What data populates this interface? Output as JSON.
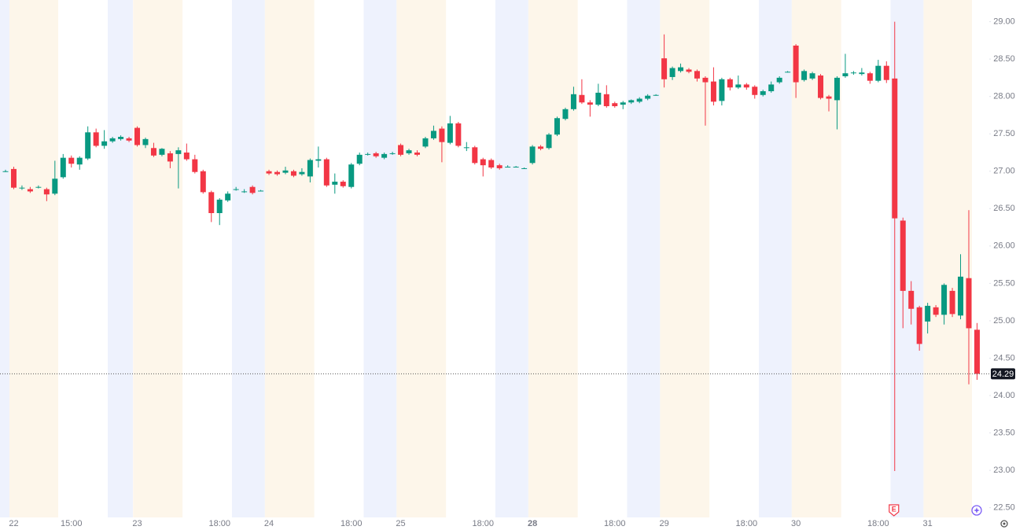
{
  "chart_data": {
    "type": "candlestick",
    "categories": [
      null,
      "22",
      null,
      null,
      null,
      null,
      null,
      null,
      "15:00",
      null,
      null,
      null,
      null,
      null,
      null,
      null,
      "23",
      null,
      null,
      null,
      null,
      null,
      null,
      null,
      null,
      null,
      "18:00",
      null,
      null,
      null,
      null,
      null,
      "24",
      null,
      null,
      null,
      null,
      null,
      null,
      null,
      null,
      null,
      "18:00",
      null,
      null,
      null,
      null,
      null,
      "25",
      null,
      null,
      null,
      null,
      null,
      null,
      null,
      null,
      null,
      "18:00",
      null,
      null,
      null,
      null,
      null,
      "28",
      null,
      null,
      null,
      null,
      null,
      null,
      null,
      null,
      null,
      "18:00",
      null,
      null,
      null,
      null,
      null,
      "29",
      null,
      null,
      null,
      null,
      null,
      null,
      null,
      null,
      null,
      "18:00",
      null,
      null,
      null,
      null,
      null,
      "30",
      null,
      null,
      null,
      null,
      null,
      null,
      null,
      null,
      null,
      "18:00",
      null,
      null,
      null,
      null,
      null,
      "31",
      null,
      null,
      null,
      null,
      null,
      null
    ],
    "ohlc": [
      [
        27.0,
        27.02,
        26.99,
        27.0
      ],
      [
        27.03,
        27.06,
        26.76,
        26.78
      ],
      [
        26.78,
        26.81,
        26.75,
        26.78
      ],
      [
        26.76,
        26.79,
        26.71,
        26.73
      ],
      [
        26.79,
        26.81,
        26.77,
        26.79
      ],
      [
        26.76,
        26.78,
        26.6,
        26.69
      ],
      [
        26.7,
        27.14,
        26.68,
        26.9
      ],
      [
        26.92,
        27.23,
        26.9,
        27.18
      ],
      [
        27.18,
        27.21,
        27.05,
        27.1
      ],
      [
        27.09,
        27.2,
        27.02,
        27.18
      ],
      [
        27.17,
        27.6,
        27.15,
        27.52
      ],
      [
        27.52,
        27.57,
        27.32,
        27.34
      ],
      [
        27.34,
        27.55,
        27.3,
        27.4
      ],
      [
        27.4,
        27.46,
        27.38,
        27.44
      ],
      [
        27.43,
        27.48,
        27.41,
        27.46
      ],
      [
        27.44,
        27.46,
        27.39,
        27.41
      ],
      [
        27.58,
        27.6,
        27.33,
        27.35
      ],
      [
        27.35,
        27.45,
        27.31,
        27.43
      ],
      [
        27.31,
        27.38,
        27.19,
        27.21
      ],
      [
        27.22,
        27.31,
        27.2,
        27.3
      ],
      [
        27.24,
        27.27,
        27.04,
        27.13
      ],
      [
        27.23,
        27.32,
        26.77,
        27.28
      ],
      [
        27.25,
        27.37,
        27.14,
        27.16
      ],
      [
        27.16,
        27.22,
        26.97,
        26.99
      ],
      [
        27.0,
        27.02,
        26.7,
        26.72
      ],
      [
        26.72,
        26.74,
        26.32,
        26.44
      ],
      [
        26.44,
        26.64,
        26.28,
        26.62
      ],
      [
        26.61,
        26.73,
        26.59,
        26.7
      ],
      [
        26.76,
        26.79,
        26.74,
        26.76
      ],
      [
        26.73,
        26.76,
        26.71,
        26.73
      ],
      [
        26.79,
        26.81,
        26.69,
        26.71
      ],
      [
        26.74,
        26.75,
        26.73,
        26.74
      ],
      [
        27.0,
        27.02,
        26.95,
        26.97
      ],
      [
        26.99,
        27.01,
        26.94,
        26.96
      ],
      [
        26.98,
        27.06,
        26.96,
        27.01
      ],
      [
        27.0,
        27.02,
        26.92,
        26.94
      ],
      [
        26.96,
        27.04,
        26.94,
        26.99
      ],
      [
        26.93,
        27.17,
        26.85,
        27.15
      ],
      [
        27.14,
        27.33,
        27.05,
        27.16
      ],
      [
        27.16,
        27.18,
        26.79,
        26.81
      ],
      [
        26.82,
        26.97,
        26.7,
        26.86
      ],
      [
        26.86,
        26.88,
        26.78,
        26.8
      ],
      [
        26.79,
        27.11,
        26.77,
        27.09
      ],
      [
        27.1,
        27.25,
        27.08,
        27.22
      ],
      [
        27.23,
        27.25,
        27.21,
        27.23
      ],
      [
        27.24,
        27.26,
        27.18,
        27.2
      ],
      [
        27.18,
        27.25,
        27.16,
        27.23
      ],
      [
        27.24,
        27.26,
        27.22,
        27.24
      ],
      [
        27.35,
        27.37,
        27.2,
        27.22
      ],
      [
        27.24,
        27.3,
        27.22,
        27.28
      ],
      [
        27.25,
        27.28,
        27.2,
        27.22
      ],
      [
        27.33,
        27.46,
        27.31,
        27.44
      ],
      [
        27.44,
        27.61,
        27.42,
        27.54
      ],
      [
        27.57,
        27.6,
        27.12,
        27.39
      ],
      [
        27.38,
        27.74,
        27.36,
        27.64
      ],
      [
        27.64,
        27.66,
        27.32,
        27.34
      ],
      [
        27.32,
        27.39,
        27.27,
        27.32
      ],
      [
        27.32,
        27.34,
        27.09,
        27.11
      ],
      [
        27.16,
        27.18,
        26.93,
        27.08
      ],
      [
        27.15,
        27.17,
        27.03,
        27.05
      ],
      [
        27.08,
        27.1,
        27.02,
        27.04
      ],
      [
        27.06,
        27.08,
        27.05,
        27.06
      ],
      [
        27.06,
        27.07,
        27.05,
        27.06
      ],
      [
        27.04,
        27.05,
        27.03,
        27.04
      ],
      [
        27.11,
        27.35,
        27.09,
        27.33
      ],
      [
        27.33,
        27.35,
        27.28,
        27.3
      ],
      [
        27.31,
        27.51,
        27.29,
        27.49
      ],
      [
        27.49,
        27.73,
        27.47,
        27.71
      ],
      [
        27.7,
        27.85,
        27.68,
        27.83
      ],
      [
        27.83,
        28.13,
        27.81,
        28.03
      ],
      [
        28.02,
        28.23,
        27.9,
        27.92
      ],
      [
        27.92,
        27.95,
        27.73,
        27.89
      ],
      [
        27.89,
        28.17,
        27.87,
        28.05
      ],
      [
        28.03,
        28.15,
        27.85,
        27.87
      ],
      [
        27.91,
        27.93,
        27.85,
        27.87
      ],
      [
        27.89,
        27.94,
        27.83,
        27.92
      ],
      [
        27.92,
        27.96,
        27.9,
        27.95
      ],
      [
        27.93,
        27.99,
        27.91,
        27.97
      ],
      [
        27.97,
        28.03,
        27.95,
        28.01
      ],
      [
        28.02,
        28.03,
        28.01,
        28.02
      ],
      [
        28.51,
        28.83,
        28.12,
        28.23
      ],
      [
        28.26,
        28.4,
        28.22,
        28.38
      ],
      [
        28.34,
        28.44,
        28.32,
        28.39
      ],
      [
        28.36,
        28.38,
        28.31,
        28.33
      ],
      [
        28.34,
        28.36,
        28.2,
        28.24
      ],
      [
        28.25,
        28.27,
        27.61,
        28.19
      ],
      [
        28.2,
        28.39,
        27.88,
        27.93
      ],
      [
        27.94,
        28.25,
        27.88,
        28.23
      ],
      [
        28.23,
        28.25,
        28.08,
        28.12
      ],
      [
        28.12,
        28.28,
        28.1,
        28.16
      ],
      [
        28.16,
        28.18,
        28.09,
        28.12
      ],
      [
        28.13,
        28.15,
        27.97,
        28.02
      ],
      [
        28.02,
        28.09,
        28.0,
        28.07
      ],
      [
        28.07,
        28.2,
        28.05,
        28.16
      ],
      [
        28.19,
        28.27,
        28.17,
        28.25
      ],
      [
        28.33,
        28.34,
        28.32,
        28.33
      ],
      [
        28.68,
        28.7,
        27.98,
        28.19
      ],
      [
        28.22,
        28.36,
        28.2,
        28.34
      ],
      [
        28.24,
        28.33,
        28.22,
        28.31
      ],
      [
        28.28,
        28.3,
        27.96,
        27.98
      ],
      [
        28.0,
        28.02,
        27.8,
        27.97
      ],
      [
        27.95,
        28.27,
        27.56,
        28.25
      ],
      [
        28.27,
        28.57,
        28.25,
        28.31
      ],
      [
        28.31,
        28.34,
        28.29,
        28.32
      ],
      [
        28.3,
        28.38,
        28.28,
        28.32
      ],
      [
        28.31,
        28.33,
        28.17,
        28.21
      ],
      [
        28.21,
        28.49,
        28.19,
        28.41
      ],
      [
        28.41,
        28.47,
        28.18,
        28.22
      ],
      [
        28.24,
        29.0,
        22.99,
        26.37
      ],
      [
        26.34,
        26.38,
        24.9,
        25.4
      ],
      [
        25.4,
        25.53,
        24.95,
        25.16
      ],
      [
        25.18,
        25.2,
        24.6,
        24.69
      ],
      [
        24.99,
        25.24,
        24.83,
        25.2
      ],
      [
        25.18,
        25.21,
        25.05,
        25.08
      ],
      [
        25.08,
        25.5,
        24.95,
        25.48
      ],
      [
        25.4,
        25.44,
        25.05,
        25.09
      ],
      [
        25.07,
        25.89,
        25.02,
        25.59
      ],
      [
        25.57,
        26.48,
        24.15,
        24.9
      ],
      [
        24.88,
        24.97,
        24.21,
        24.29
      ]
    ],
    "up_color": "#089981",
    "down_color": "#f23645",
    "ylim": [
      22.37,
      29.29
    ],
    "yticks": [
      {
        "value": 22.5,
        "label": "22.50"
      },
      {
        "value": 23,
        "label": "23.00"
      },
      {
        "value": 23.5,
        "label": "23.50"
      },
      {
        "value": 24,
        "label": "24.00"
      },
      {
        "value": 24.5,
        "label": "24.50"
      },
      {
        "value": 25,
        "label": "25.00"
      },
      {
        "value": 25.5,
        "label": "25.50"
      },
      {
        "value": 26,
        "label": "26.00"
      },
      {
        "value": 26.5,
        "label": "26.50"
      },
      {
        "value": 27,
        "label": "27.00"
      },
      {
        "value": 27.5,
        "label": "27.50"
      },
      {
        "value": 28,
        "label": "28.00"
      },
      {
        "value": 28.5,
        "label": "28.50"
      },
      {
        "value": 29,
        "label": "29.00"
      }
    ],
    "last_price": 24.29,
    "events": [
      {
        "category_index": 108,
        "label": "E"
      }
    ]
  }
}
